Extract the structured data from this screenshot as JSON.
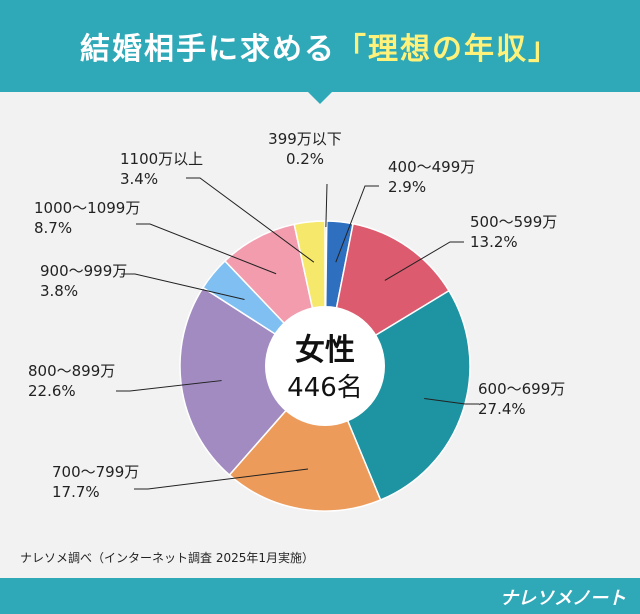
{
  "header": {
    "title_main": "結婚相手に求める",
    "title_accent": "「理想の年収」"
  },
  "center": {
    "line1": "女性",
    "line2": "446名"
  },
  "source": "ナレソメ調べ（インターネット調査 2025年1月実施）",
  "brand": "ナレソメノート",
  "colors": {
    "header_bg": "#2fa8b8",
    "accent_text": "#fff27a"
  },
  "chart_data": {
    "type": "pie",
    "categories": [
      "399万以下",
      "400～499万",
      "500～599万",
      "600～699万",
      "700～799万",
      "800～899万",
      "900～999万",
      "1000～1099万",
      "1100万以上"
    ],
    "values": [
      0.2,
      2.9,
      13.2,
      27.4,
      17.7,
      22.6,
      3.8,
      8.7,
      3.4
    ],
    "value_labels": [
      "0.2%",
      "2.9%",
      "13.2%",
      "27.4%",
      "17.7%",
      "22.6%",
      "3.8%",
      "8.7%",
      "3.4%"
    ],
    "colors": [
      "#e8586a",
      "#2f6fbf",
      "#dc5b6e",
      "#1e93a1",
      "#ec9b5a",
      "#a18bc1",
      "#7fbff2",
      "#f29cae",
      "#f5e86a"
    ],
    "title": "女性",
    "center_label": "446名"
  }
}
